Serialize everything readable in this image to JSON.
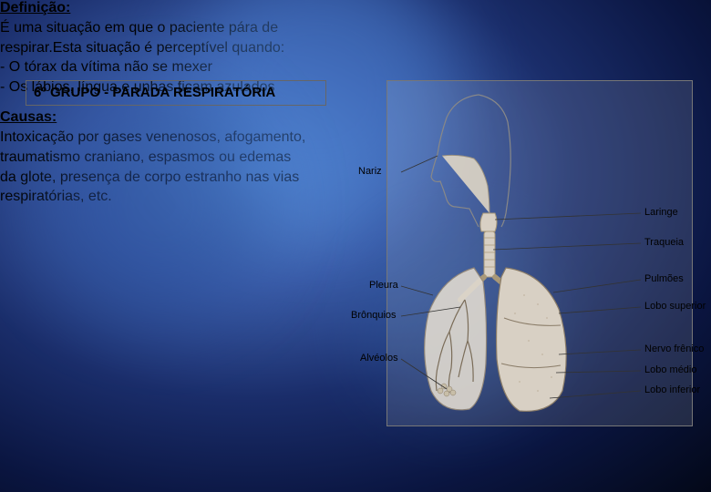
{
  "title": "6º GRUPO - PARADA RESPIRATÓRIA",
  "def_heading": "Definição:",
  "def_body": "É uma situação em que o paciente pára de respirar.Esta situação é perceptível quando:\n- O tórax da vítima não se mexer\n- Os lábios, língua e unhas ficam azulados",
  "causes_heading": "Causas:",
  "causes_body": "Intoxicação por gases venenosos, afogamento, traumatismo craniano, espasmos ou edemas da glote, presença de corpo estranho nas vias respiratórias, etc.",
  "diagram": {
    "labels": {
      "nariz": "Nariz",
      "laringe": "Laringe",
      "traqueia": "Traqueia",
      "pleura": "Pleura",
      "pulmoes": "Pulmões",
      "bronquios": "Brônquios",
      "lobo_superior": "Lobo superior",
      "alveolos": "Alvéolos",
      "nervo_frenico": "Nervo frênico",
      "lobo_medio": "Lobo médio",
      "lobo_inferior": "Lobo inferior"
    },
    "colors": {
      "lung": "#d8d0c4",
      "lung_shade": "#b8a890",
      "trachea": "#c0b8a8",
      "head_outline": "#888",
      "leader": "#444"
    }
  }
}
